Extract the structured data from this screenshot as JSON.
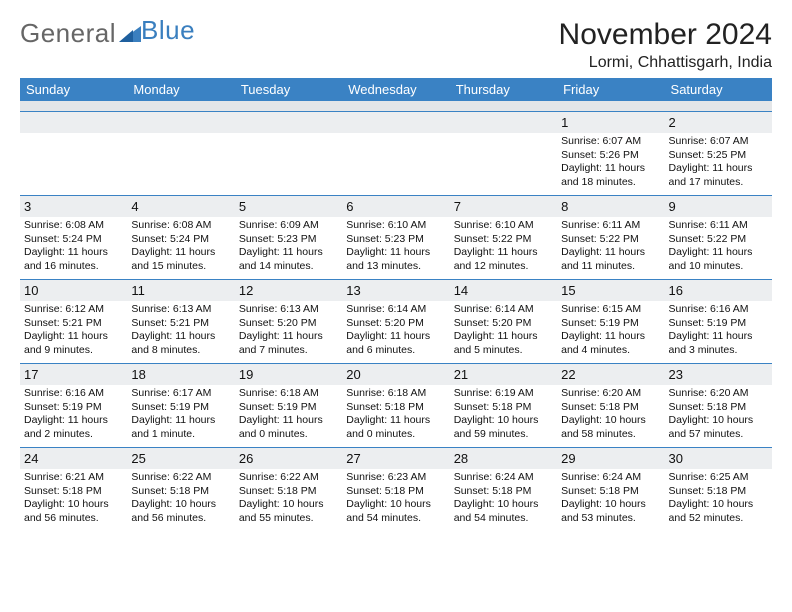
{
  "brand": {
    "part1": "General",
    "part2": "Blue"
  },
  "title": "November 2024",
  "location": "Lormi, Chhattisgarh, India",
  "colors": {
    "header_bg": "#3a82c4",
    "header_text": "#ffffff",
    "daynum_bg": "#eceef0",
    "row_sep": "#3a82c4",
    "spacer_bg": "#e4e6e8",
    "body_text": "#111111",
    "brand_gray": "#666666",
    "brand_blue": "#3a7fbf"
  },
  "dayNames": [
    "Sunday",
    "Monday",
    "Tuesday",
    "Wednesday",
    "Thursday",
    "Friday",
    "Saturday"
  ],
  "weeks": [
    [
      null,
      null,
      null,
      null,
      null,
      {
        "n": "1",
        "sunrise": "Sunrise: 6:07 AM",
        "sunset": "Sunset: 5:26 PM",
        "daylight": "Daylight: 11 hours and 18 minutes."
      },
      {
        "n": "2",
        "sunrise": "Sunrise: 6:07 AM",
        "sunset": "Sunset: 5:25 PM",
        "daylight": "Daylight: 11 hours and 17 minutes."
      }
    ],
    [
      {
        "n": "3",
        "sunrise": "Sunrise: 6:08 AM",
        "sunset": "Sunset: 5:24 PM",
        "daylight": "Daylight: 11 hours and 16 minutes."
      },
      {
        "n": "4",
        "sunrise": "Sunrise: 6:08 AM",
        "sunset": "Sunset: 5:24 PM",
        "daylight": "Daylight: 11 hours and 15 minutes."
      },
      {
        "n": "5",
        "sunrise": "Sunrise: 6:09 AM",
        "sunset": "Sunset: 5:23 PM",
        "daylight": "Daylight: 11 hours and 14 minutes."
      },
      {
        "n": "6",
        "sunrise": "Sunrise: 6:10 AM",
        "sunset": "Sunset: 5:23 PM",
        "daylight": "Daylight: 11 hours and 13 minutes."
      },
      {
        "n": "7",
        "sunrise": "Sunrise: 6:10 AM",
        "sunset": "Sunset: 5:22 PM",
        "daylight": "Daylight: 11 hours and 12 minutes."
      },
      {
        "n": "8",
        "sunrise": "Sunrise: 6:11 AM",
        "sunset": "Sunset: 5:22 PM",
        "daylight": "Daylight: 11 hours and 11 minutes."
      },
      {
        "n": "9",
        "sunrise": "Sunrise: 6:11 AM",
        "sunset": "Sunset: 5:22 PM",
        "daylight": "Daylight: 11 hours and 10 minutes."
      }
    ],
    [
      {
        "n": "10",
        "sunrise": "Sunrise: 6:12 AM",
        "sunset": "Sunset: 5:21 PM",
        "daylight": "Daylight: 11 hours and 9 minutes."
      },
      {
        "n": "11",
        "sunrise": "Sunrise: 6:13 AM",
        "sunset": "Sunset: 5:21 PM",
        "daylight": "Daylight: 11 hours and 8 minutes."
      },
      {
        "n": "12",
        "sunrise": "Sunrise: 6:13 AM",
        "sunset": "Sunset: 5:20 PM",
        "daylight": "Daylight: 11 hours and 7 minutes."
      },
      {
        "n": "13",
        "sunrise": "Sunrise: 6:14 AM",
        "sunset": "Sunset: 5:20 PM",
        "daylight": "Daylight: 11 hours and 6 minutes."
      },
      {
        "n": "14",
        "sunrise": "Sunrise: 6:14 AM",
        "sunset": "Sunset: 5:20 PM",
        "daylight": "Daylight: 11 hours and 5 minutes."
      },
      {
        "n": "15",
        "sunrise": "Sunrise: 6:15 AM",
        "sunset": "Sunset: 5:19 PM",
        "daylight": "Daylight: 11 hours and 4 minutes."
      },
      {
        "n": "16",
        "sunrise": "Sunrise: 6:16 AM",
        "sunset": "Sunset: 5:19 PM",
        "daylight": "Daylight: 11 hours and 3 minutes."
      }
    ],
    [
      {
        "n": "17",
        "sunrise": "Sunrise: 6:16 AM",
        "sunset": "Sunset: 5:19 PM",
        "daylight": "Daylight: 11 hours and 2 minutes."
      },
      {
        "n": "18",
        "sunrise": "Sunrise: 6:17 AM",
        "sunset": "Sunset: 5:19 PM",
        "daylight": "Daylight: 11 hours and 1 minute."
      },
      {
        "n": "19",
        "sunrise": "Sunrise: 6:18 AM",
        "sunset": "Sunset: 5:19 PM",
        "daylight": "Daylight: 11 hours and 0 minutes."
      },
      {
        "n": "20",
        "sunrise": "Sunrise: 6:18 AM",
        "sunset": "Sunset: 5:18 PM",
        "daylight": "Daylight: 11 hours and 0 minutes."
      },
      {
        "n": "21",
        "sunrise": "Sunrise: 6:19 AM",
        "sunset": "Sunset: 5:18 PM",
        "daylight": "Daylight: 10 hours and 59 minutes."
      },
      {
        "n": "22",
        "sunrise": "Sunrise: 6:20 AM",
        "sunset": "Sunset: 5:18 PM",
        "daylight": "Daylight: 10 hours and 58 minutes."
      },
      {
        "n": "23",
        "sunrise": "Sunrise: 6:20 AM",
        "sunset": "Sunset: 5:18 PM",
        "daylight": "Daylight: 10 hours and 57 minutes."
      }
    ],
    [
      {
        "n": "24",
        "sunrise": "Sunrise: 6:21 AM",
        "sunset": "Sunset: 5:18 PM",
        "daylight": "Daylight: 10 hours and 56 minutes."
      },
      {
        "n": "25",
        "sunrise": "Sunrise: 6:22 AM",
        "sunset": "Sunset: 5:18 PM",
        "daylight": "Daylight: 10 hours and 56 minutes."
      },
      {
        "n": "26",
        "sunrise": "Sunrise: 6:22 AM",
        "sunset": "Sunset: 5:18 PM",
        "daylight": "Daylight: 10 hours and 55 minutes."
      },
      {
        "n": "27",
        "sunrise": "Sunrise: 6:23 AM",
        "sunset": "Sunset: 5:18 PM",
        "daylight": "Daylight: 10 hours and 54 minutes."
      },
      {
        "n": "28",
        "sunrise": "Sunrise: 6:24 AM",
        "sunset": "Sunset: 5:18 PM",
        "daylight": "Daylight: 10 hours and 54 minutes."
      },
      {
        "n": "29",
        "sunrise": "Sunrise: 6:24 AM",
        "sunset": "Sunset: 5:18 PM",
        "daylight": "Daylight: 10 hours and 53 minutes."
      },
      {
        "n": "30",
        "sunrise": "Sunrise: 6:25 AM",
        "sunset": "Sunset: 5:18 PM",
        "daylight": "Daylight: 10 hours and 52 minutes."
      }
    ]
  ]
}
